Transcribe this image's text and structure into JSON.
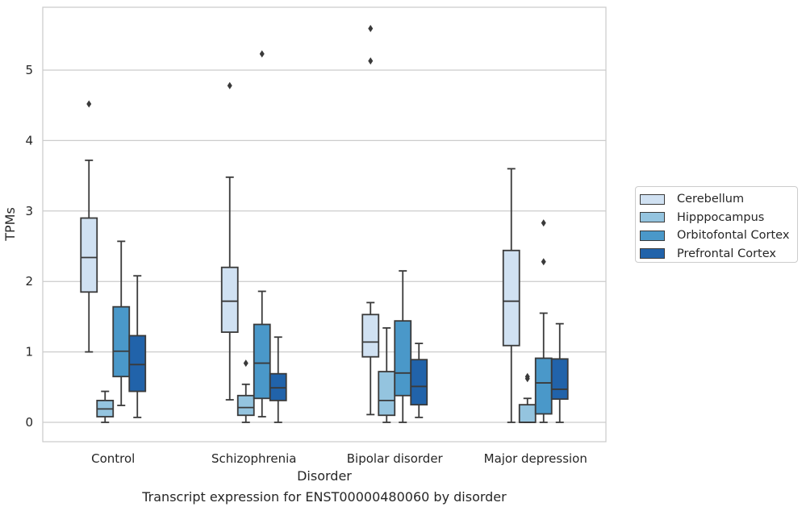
{
  "chart_data": {
    "type": "box",
    "title": "Transcript expression for ENST00000480060 by disorder",
    "xlabel": "Disorder",
    "ylabel": "TPMs",
    "ylim": [
      -0.27,
      5.88
    ],
    "yticks": [
      0,
      1,
      2,
      3,
      4,
      5
    ],
    "grid": true,
    "legend_position": "right",
    "categories": [
      "Control",
      "Schizophrenia",
      "Bipolar disorder",
      "Major depression"
    ],
    "series": [
      {
        "name": "Cerebellum",
        "color": "#d0e1f2",
        "boxes": [
          {
            "whislo": 1.0,
            "q1": 1.85,
            "med": 2.34,
            "q3": 2.9,
            "whishi": 3.72,
            "fliers": [
              4.52
            ]
          },
          {
            "whislo": 0.32,
            "q1": 1.28,
            "med": 1.72,
            "q3": 2.2,
            "whishi": 3.48,
            "fliers": [
              4.78
            ]
          },
          {
            "whislo": 0.11,
            "q1": 0.93,
            "med": 1.14,
            "q3": 1.53,
            "whishi": 1.7,
            "fliers": [
              5.13,
              5.59
            ]
          },
          {
            "whislo": 0.0,
            "q1": 1.09,
            "med": 1.72,
            "q3": 2.44,
            "whishi": 3.6,
            "fliers": []
          }
        ]
      },
      {
        "name": "Hipppocampus",
        "color": "#94c4df",
        "boxes": [
          {
            "whislo": 0.0,
            "q1": 0.08,
            "med": 0.19,
            "q3": 0.31,
            "whishi": 0.44,
            "fliers": []
          },
          {
            "whislo": 0.0,
            "q1": 0.1,
            "med": 0.21,
            "q3": 0.38,
            "whishi": 0.54,
            "fliers": [
              0.84
            ]
          },
          {
            "whislo": 0.0,
            "q1": 0.1,
            "med": 0.31,
            "q3": 0.72,
            "whishi": 1.34,
            "fliers": []
          },
          {
            "whislo": 0.0,
            "q1": 0.0,
            "med": 0.0,
            "q3": 0.25,
            "whishi": 0.34,
            "fliers": [
              0.62,
              0.65
            ]
          }
        ]
      },
      {
        "name": "Orbitofontal Cortex",
        "color": "#4a98c9",
        "boxes": [
          {
            "whislo": 0.24,
            "q1": 0.65,
            "med": 1.01,
            "q3": 1.64,
            "whishi": 2.57,
            "fliers": []
          },
          {
            "whislo": 0.08,
            "q1": 0.34,
            "med": 0.84,
            "q3": 1.39,
            "whishi": 1.86,
            "fliers": [
              5.23
            ]
          },
          {
            "whislo": 0.0,
            "q1": 0.38,
            "med": 0.7,
            "q3": 1.44,
            "whishi": 2.15,
            "fliers": []
          },
          {
            "whislo": 0.0,
            "q1": 0.12,
            "med": 0.56,
            "q3": 0.91,
            "whishi": 1.55,
            "fliers": [
              2.28,
              2.83
            ]
          }
        ]
      },
      {
        "name": "Prefrontal Cortex",
        "color": "#2163aa",
        "boxes": [
          {
            "whislo": 0.07,
            "q1": 0.44,
            "med": 0.82,
            "q3": 1.23,
            "whishi": 2.08,
            "fliers": []
          },
          {
            "whislo": 0.0,
            "q1": 0.31,
            "med": 0.49,
            "q3": 0.69,
            "whishi": 1.21,
            "fliers": []
          },
          {
            "whislo": 0.07,
            "q1": 0.25,
            "med": 0.51,
            "q3": 0.89,
            "whishi": 1.12,
            "fliers": []
          },
          {
            "whislo": 0.0,
            "q1": 0.33,
            "med": 0.47,
            "q3": 0.9,
            "whishi": 1.4,
            "fliers": []
          }
        ]
      }
    ]
  }
}
